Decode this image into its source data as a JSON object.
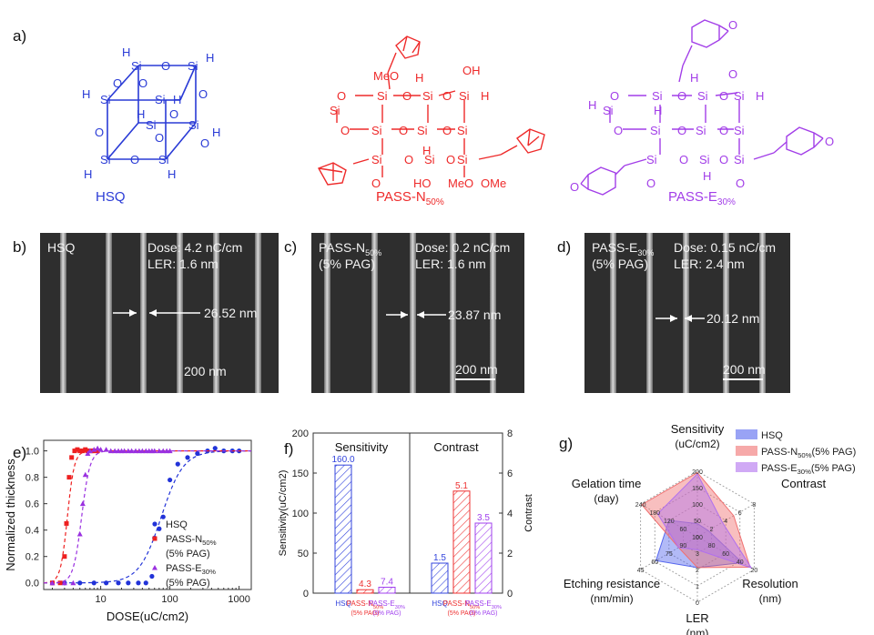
{
  "panels": {
    "a": "a)",
    "b": "b)",
    "c": "c)",
    "d": "d)",
    "e": "e)",
    "f": "f)",
    "g": "g)"
  },
  "structures": {
    "hsq": {
      "name": "HSQ",
      "color": "#2a3bd6"
    },
    "passn": {
      "name": "PASS-N",
      "sub": "50%",
      "color": "#ee2a2a"
    },
    "passe": {
      "name": "PASS-E",
      "sub": "30%",
      "color": "#a23ee8"
    },
    "atoms": {
      "si": "Si",
      "o": "O",
      "h": "H",
      "meo": "MeO",
      "ome": "OMe",
      "oh": "OH",
      "ho": "HO"
    }
  },
  "sem": {
    "b": {
      "label": "HSQ",
      "dose": "Dose: 4.2 nC/cm",
      "ler": "LER: 1.6 nm",
      "width": "26.52 nm",
      "scale": "200 nm"
    },
    "c": {
      "label": "PASS-N",
      "label_sub": "50%",
      "label2": "(5% PAG)",
      "dose": "Dose: 0.2 nC/cm",
      "ler": "LER: 1.6 nm",
      "width": "23.87 nm",
      "scale": "200 nm"
    },
    "d": {
      "label": "PASS-E",
      "label_sub": "30%",
      "label2": "(5% PAG)",
      "dose": "Dose: 0.15 nC/cm",
      "ler": "LER: 2.4 nm",
      "width": "20.12 nm",
      "scale": "200 nm"
    }
  },
  "chart_data": [
    {
      "type": "scatter",
      "title": "",
      "xlabel": "DOSE(uC/cm2)",
      "ylabel": "Normalized thickness",
      "xscale": "log",
      "xlim": [
        1.5,
        1500
      ],
      "ylim": [
        -0.05,
        1.08
      ],
      "xticks": [
        {
          "v": 10,
          "label": "10"
        },
        {
          "v": 100,
          "label": "100"
        },
        {
          "v": 1000,
          "label": "1000"
        }
      ],
      "yticks": [
        0.0,
        0.2,
        0.4,
        0.6,
        0.8,
        1.0
      ],
      "ytick_labels": [
        "0.0",
        "0.2",
        "0.4",
        "0.6",
        "0.8",
        "1.0"
      ],
      "legend": [
        {
          "name": "HSQ"
        },
        {
          "name": "PASS-N",
          "sub": "50%",
          "line2": "(5% PAG)"
        },
        {
          "name": "PASS-E",
          "sub": "30%",
          "line2": "(5% PAG)"
        }
      ],
      "series": [
        {
          "name": "HSQ",
          "color": "#2233d8",
          "marker": "circle",
          "x": [
            2,
            3,
            5,
            8,
            12,
            18,
            25,
            35,
            45,
            55,
            60,
            70,
            80,
            100,
            130,
            180,
            250,
            350,
            450,
            600,
            800,
            1000
          ],
          "y": [
            0,
            0,
            0,
            0,
            0,
            0,
            0,
            0,
            0,
            0.05,
            0.34,
            0.41,
            0.5,
            0.78,
            0.9,
            0.95,
            0.98,
            1.0,
            1.02,
            1.0,
            1.0,
            1.0
          ],
          "fit_center": 75,
          "fit_width": 0.16
        },
        {
          "name": "PASS-N50% (5% PAG)",
          "color": "#ee2020",
          "marker": "square",
          "x": [
            2,
            2.6,
            3.0,
            3.2,
            3.5,
            3.8,
            4.2,
            4.6,
            5,
            5.5,
            6,
            6.5,
            7,
            7.5,
            8,
            9
          ],
          "y": [
            0,
            0,
            0.2,
            0.45,
            0.8,
            0.95,
            1.0,
            1.01,
            1.0,
            1.0,
            1.01,
            1.0,
            1.0,
            1.0,
            1.0,
            1.0
          ],
          "fit_center": 3.3,
          "fit_width": 0.05
        },
        {
          "name": "PASS-E30% (5% PAG)",
          "color": "#9a30e0",
          "marker": "triangle",
          "x": [
            2,
            3,
            4,
            5,
            5.5,
            6,
            6.5,
            7,
            8,
            9,
            10,
            12,
            14,
            16,
            18,
            20,
            22,
            25,
            28,
            32,
            36,
            40,
            45,
            50,
            55,
            60,
            70,
            80,
            90,
            100
          ],
          "y": [
            0,
            0,
            0,
            0.37,
            0.6,
            0.82,
            0.98,
            1.0,
            1.01,
            1.02,
            1.01,
            1.01,
            1.0,
            1.0,
            1.0,
            1.0,
            1.0,
            1.0,
            1.0,
            1.0,
            1.0,
            1.0,
            1.0,
            1.0,
            1.0,
            1.0,
            1.0,
            1.0,
            1.0,
            1.0
          ],
          "fit_center": 5.3,
          "fit_width": 0.06
        }
      ]
    },
    {
      "type": "bar",
      "title": "",
      "groups": [
        "Sensitivity",
        "Contrast"
      ],
      "categories": [
        "HSQ",
        "PASS-N50% (5% PAG)",
        "PASS-E30% (5% PAG)"
      ],
      "category_labels": [
        {
          "name": "HSQ"
        },
        {
          "name": "PASS-N",
          "sub": "50%",
          "line2": "(5% PAG)"
        },
        {
          "name": "PASS-E",
          "sub": "30%",
          "line2": "(5% PAG)"
        }
      ],
      "colors": [
        "#3344dd",
        "#ee3030",
        "#a040ee"
      ],
      "sensitivity": {
        "values": [
          160.0,
          4.3,
          7.4
        ],
        "labels": [
          "160.0",
          "4.3",
          "7.4"
        ],
        "ylabel": "Sensitivity(uC/cm2)",
        "ylim": [
          0,
          200
        ],
        "yticks": [
          0,
          50,
          100,
          150,
          200
        ]
      },
      "contrast": {
        "values": [
          1.5,
          5.1,
          3.5
        ],
        "labels": [
          "1.5",
          "5.1",
          "3.5"
        ],
        "ylabel": "Contrast",
        "ylim": [
          0,
          8
        ],
        "yticks": [
          0,
          2,
          4,
          6,
          8
        ]
      }
    },
    {
      "type": "radar",
      "axes": [
        {
          "name": "Sensitivity",
          "unit": "(uC/cm2)",
          "ticks": [
            "0",
            "50",
            "100",
            "150",
            "200"
          ]
        },
        {
          "name": "Contrast",
          "unit": "",
          "ticks": [
            "2",
            "4",
            "6",
            "8"
          ]
        },
        {
          "name": "Resolution",
          "unit": "(nm)",
          "ticks": [
            "100",
            "80",
            "60",
            "40",
            "20"
          ]
        },
        {
          "name": "LER",
          "unit": "(nm)",
          "ticks": [
            "3",
            "2",
            "1",
            "0"
          ]
        },
        {
          "name": "Etching resistance",
          "unit": "(nm/min)",
          "ticks": [
            "90",
            "75",
            "60",
            "45"
          ]
        },
        {
          "name": "Gelation time",
          "unit": "(day)",
          "ticks": [
            "0",
            "60",
            "120",
            "180",
            "240"
          ]
        }
      ],
      "series": [
        {
          "name": "HSQ",
          "color": "#5566ee",
          "values": [
            0.2,
            0.19,
            0.79,
            0.47,
            0.73,
            0.5
          ]
        },
        {
          "name": "PASS-N50%(5% PAG)",
          "color": "#f07070",
          "values": [
            0.98,
            0.64,
            0.93,
            0.47,
            0.33,
            0.98
          ]
        },
        {
          "name": "PASS-E30%(5% PAG)",
          "color": "#b070ee",
          "values": [
            0.96,
            0.44,
            0.95,
            0.2,
            0.33,
            0.7
          ]
        }
      ],
      "legend": [
        {
          "name": "HSQ"
        },
        {
          "name": "PASS-N",
          "sub": "50%",
          "rest": "(5% PAG)"
        },
        {
          "name": "PASS-E",
          "sub": "30%",
          "rest": "(5% PAG)"
        }
      ]
    }
  ]
}
